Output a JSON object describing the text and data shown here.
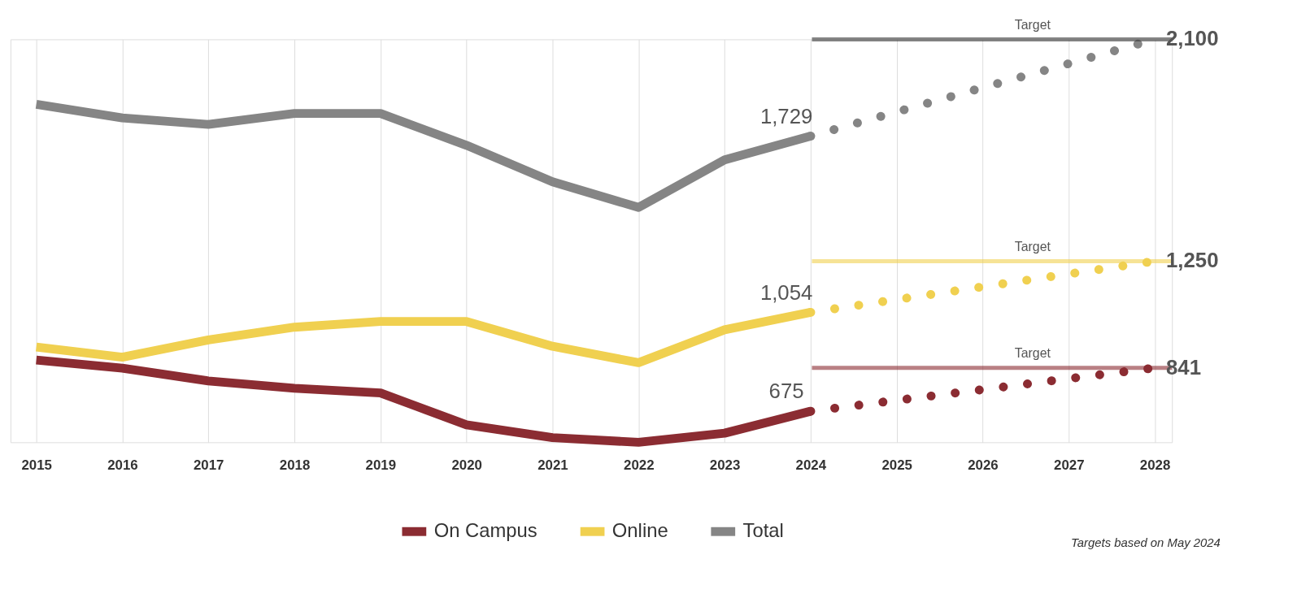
{
  "chart_data": {
    "type": "line",
    "x": [
      2015,
      2016,
      2017,
      2018,
      2019,
      2020,
      2021,
      2022,
      2023,
      2024
    ],
    "xlim": [
      2014.7,
      2028.2
    ],
    "xticks": [
      2015,
      2016,
      2017,
      2018,
      2019,
      2020,
      2021,
      2022,
      2023,
      2024,
      2025,
      2026,
      2027,
      2028
    ],
    "grid": "x",
    "legend": "bottom",
    "line_style": "solid",
    "marker": "none",
    "series": [
      {
        "name": "On Campus",
        "color": "#8b2c32",
        "values": [
          871,
          840,
          791,
          763,
          745,
          623,
          574,
          556,
          591,
          675
        ],
        "value_labels": [
          null,
          null,
          null,
          null,
          null,
          null,
          null,
          null,
          null,
          "675"
        ]
      },
      {
        "name": "Online",
        "color": "#f0d050",
        "values": [
          921,
          882,
          948,
          997,
          1019,
          1019,
          924,
          861,
          987,
          1054
        ],
        "value_labels": [
          null,
          null,
          null,
          null,
          null,
          null,
          null,
          null,
          null,
          "1,054"
        ]
      },
      {
        "name": "Total",
        "color": "#858585",
        "values": [
          1851,
          1799,
          1774,
          1816,
          1816,
          1694,
          1554,
          1456,
          1638,
          1729
        ],
        "value_labels": [
          null,
          null,
          null,
          null,
          null,
          null,
          null,
          null,
          null,
          "1,729"
        ]
      },
      {
        "color": "#8b2c32",
        "x": [
          2024,
          2025,
          2026,
          2027,
          2028
        ],
        "values": [
          675,
          717,
          758,
          800,
          841
        ],
        "line_style": "dotted",
        "value_labels": [
          null,
          null,
          null,
          null,
          "841"
        ]
      },
      {
        "color": "#f0d050",
        "x": [
          2024,
          2025,
          2026,
          2027,
          2028
        ],
        "values": [
          1054,
          1103,
          1152,
          1201,
          1250
        ],
        "line_style": "dotted",
        "value_labels": [
          null,
          null,
          null,
          null,
          "1,250"
        ]
      },
      {
        "color": "#858585",
        "x": [
          2024,
          2025,
          2026,
          2027,
          2028
        ],
        "values": [
          1729,
          1822,
          1915,
          2007,
          2100
        ],
        "line_style": "dotted",
        "value_labels": [
          null,
          null,
          null,
          null,
          "2,100"
        ]
      }
    ],
    "ref_lines": [
      {
        "axis": "y",
        "value": 2100,
        "label": "Target",
        "color": "#333333"
      },
      {
        "axis": "y",
        "value": 1250,
        "label": "Target",
        "color": "#f0d050"
      },
      {
        "axis": "y",
        "value": 841,
        "label": "Target",
        "color": "#8b2c32"
      }
    ],
    "annotations": [
      "Targets based on May 2024"
    ]
  }
}
